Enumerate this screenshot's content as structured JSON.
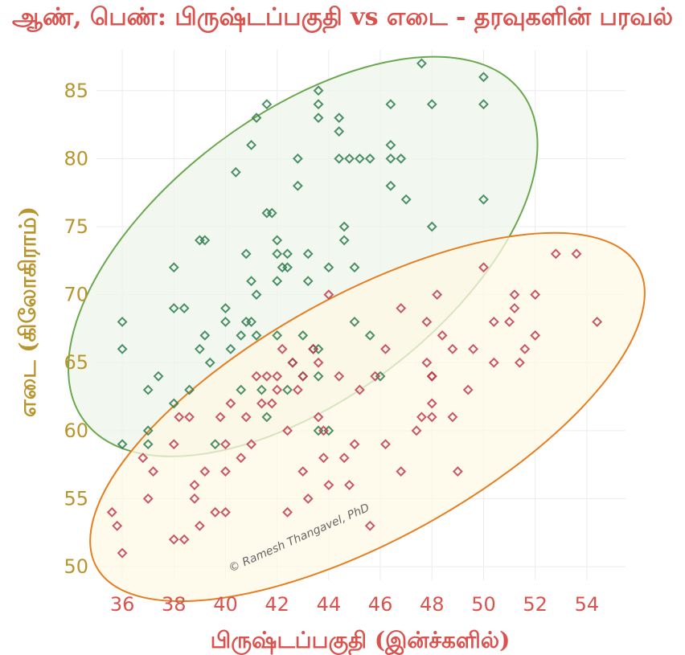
{
  "title": "ஆண், பெண்: பிருஷ்டப்பகுதி vs எடை - தரவுகளின் பரவல்",
  "watermark": "© Ramesh Thangavel, PhD",
  "chart_data": {
    "type": "scatter",
    "xlabel": "பிருஷ்டப்பகுதி (இன்ச்களில்)",
    "ylabel": "எடை (கிலோகிராம்)",
    "xlim": [
      35,
      55.5
    ],
    "ylim": [
      49,
      88
    ],
    "xticks": [
      36,
      38,
      40,
      42,
      44,
      46,
      48,
      50,
      52,
      54
    ],
    "yticks": [
      50,
      55,
      60,
      65,
      70,
      75,
      80,
      85
    ],
    "grid": true,
    "colors": {
      "series_a": "#2e7d4f",
      "series_b": "#c0394f",
      "ellipse_a_stroke": "#6aa84f",
      "ellipse_a_fill": "#eef6ea",
      "ellipse_b_stroke": "#e67e22",
      "ellipse_b_fill": "#fdf8e6"
    },
    "series": [
      {
        "points": [
          [
            36,
            68
          ],
          [
            36,
            66
          ],
          [
            36,
            59
          ],
          [
            37,
            63
          ],
          [
            37,
            60
          ],
          [
            37,
            59
          ],
          [
            37.4,
            64
          ],
          [
            38,
            72
          ],
          [
            38,
            69
          ],
          [
            38,
            62
          ],
          [
            38.4,
            69
          ],
          [
            38.6,
            63
          ],
          [
            39,
            74
          ],
          [
            39,
            66
          ],
          [
            39.2,
            67
          ],
          [
            39.2,
            74
          ],
          [
            39.4,
            65
          ],
          [
            39.6,
            59
          ],
          [
            40,
            69
          ],
          [
            40,
            68
          ],
          [
            40.2,
            66
          ],
          [
            40.4,
            79
          ],
          [
            40.6,
            67
          ],
          [
            40.6,
            63
          ],
          [
            40.8,
            73
          ],
          [
            40.8,
            68
          ],
          [
            41,
            81
          ],
          [
            41,
            71
          ],
          [
            41,
            68
          ],
          [
            41.2,
            83
          ],
          [
            41.2,
            70
          ],
          [
            41.2,
            67
          ],
          [
            41.4,
            63
          ],
          [
            41.6,
            84
          ],
          [
            41.6,
            76
          ],
          [
            41.6,
            61
          ],
          [
            41.8,
            76
          ],
          [
            42,
            74
          ],
          [
            42,
            73
          ],
          [
            42,
            71
          ],
          [
            42,
            67
          ],
          [
            42.2,
            72
          ],
          [
            42.4,
            73
          ],
          [
            42.4,
            72
          ],
          [
            42.4,
            63
          ],
          [
            42.6,
            65
          ],
          [
            42.8,
            80
          ],
          [
            42.8,
            78
          ],
          [
            43,
            67
          ],
          [
            43,
            64
          ],
          [
            43.2,
            73
          ],
          [
            43.2,
            71
          ],
          [
            43.4,
            66
          ],
          [
            43.6,
            85
          ],
          [
            43.6,
            84
          ],
          [
            43.6,
            83
          ],
          [
            43.6,
            66
          ],
          [
            43.6,
            64
          ],
          [
            43.6,
            60
          ],
          [
            44,
            72
          ],
          [
            44.4,
            83
          ],
          [
            44.4,
            82
          ],
          [
            44.4,
            80
          ],
          [
            44.6,
            75
          ],
          [
            44.6,
            74
          ],
          [
            44.8,
            80
          ],
          [
            45,
            72
          ],
          [
            45,
            68
          ],
          [
            45.2,
            80
          ],
          [
            45.6,
            80
          ],
          [
            45.6,
            67
          ],
          [
            46,
            64
          ],
          [
            46.4,
            84
          ],
          [
            46.4,
            81
          ],
          [
            46.4,
            80
          ],
          [
            46.4,
            78
          ],
          [
            46.8,
            80
          ],
          [
            47,
            77
          ],
          [
            47.6,
            87
          ],
          [
            48,
            84
          ],
          [
            48,
            75
          ],
          [
            50,
            86
          ],
          [
            50,
            84
          ],
          [
            50,
            77
          ],
          [
            44,
            60
          ]
        ]
      },
      {
        "points": [
          [
            35.6,
            54
          ],
          [
            35.8,
            53
          ],
          [
            36,
            51
          ],
          [
            36.8,
            58
          ],
          [
            37,
            55
          ],
          [
            37.2,
            57
          ],
          [
            38,
            59
          ],
          [
            38,
            52
          ],
          [
            38.2,
            61
          ],
          [
            38.4,
            52
          ],
          [
            38.6,
            61
          ],
          [
            38.8,
            56
          ],
          [
            38.8,
            55
          ],
          [
            39,
            53
          ],
          [
            39.2,
            57
          ],
          [
            39.6,
            54
          ],
          [
            39.8,
            61
          ],
          [
            40,
            59
          ],
          [
            40,
            57
          ],
          [
            40,
            54
          ],
          [
            40.2,
            62
          ],
          [
            40.6,
            58
          ],
          [
            40.8,
            61
          ],
          [
            41,
            59
          ],
          [
            41.2,
            64
          ],
          [
            41.4,
            62
          ],
          [
            41.6,
            64
          ],
          [
            41.8,
            62
          ],
          [
            42,
            64
          ],
          [
            42,
            63
          ],
          [
            42.2,
            66
          ],
          [
            42.4,
            60
          ],
          [
            42.4,
            54
          ],
          [
            42.6,
            65
          ],
          [
            42.8,
            63
          ],
          [
            43,
            64
          ],
          [
            43,
            57
          ],
          [
            43.2,
            55
          ],
          [
            43.4,
            66
          ],
          [
            43.6,
            65
          ],
          [
            43.6,
            61
          ],
          [
            43.8,
            60
          ],
          [
            43.8,
            58
          ],
          [
            44,
            70
          ],
          [
            44,
            56
          ],
          [
            44.4,
            64
          ],
          [
            44.6,
            58
          ],
          [
            44.8,
            56
          ],
          [
            45,
            59
          ],
          [
            45.2,
            63
          ],
          [
            45.6,
            53
          ],
          [
            45.8,
            64
          ],
          [
            46.2,
            66
          ],
          [
            46.2,
            59
          ],
          [
            46.8,
            69
          ],
          [
            46.8,
            57
          ],
          [
            47.4,
            60
          ],
          [
            47.6,
            61
          ],
          [
            47.8,
            68
          ],
          [
            47.8,
            65
          ],
          [
            48,
            64
          ],
          [
            48,
            64
          ],
          [
            48,
            62
          ],
          [
            48,
            61
          ],
          [
            48,
            64
          ],
          [
            48.2,
            70
          ],
          [
            48.4,
            67
          ],
          [
            48.8,
            66
          ],
          [
            48.8,
            61
          ],
          [
            49,
            57
          ],
          [
            49.4,
            63
          ],
          [
            49.6,
            66
          ],
          [
            50,
            72
          ],
          [
            50.4,
            65
          ],
          [
            50.4,
            68
          ],
          [
            51,
            68
          ],
          [
            51.2,
            70
          ],
          [
            51.2,
            69
          ],
          [
            51.4,
            65
          ],
          [
            51.6,
            66
          ],
          [
            52,
            70
          ],
          [
            52,
            67
          ],
          [
            52.8,
            73
          ],
          [
            53.6,
            73
          ],
          [
            54.4,
            68
          ]
        ]
      }
    ],
    "ellipses": [
      {
        "cx": 43.0,
        "cy": 72.8,
        "rx": 10.6,
        "ry": 10.0
      },
      {
        "cx": 45.5,
        "cy": 61.0,
        "rx": 12.0,
        "ry": 8.6
      }
    ]
  }
}
